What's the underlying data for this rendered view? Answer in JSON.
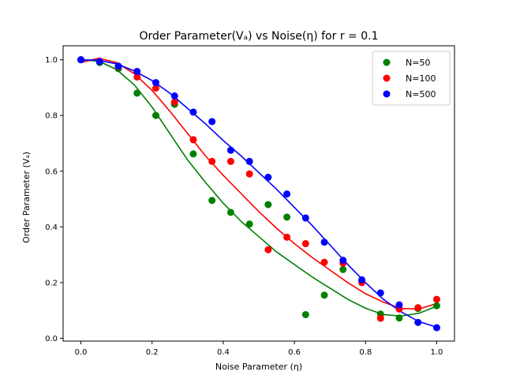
{
  "chart_data": {
    "type": "scatter",
    "title": "Order Parameter(Vₐ) vs Noise(η) for r = 0.1",
    "xlabel": "Noise Parameter (η)",
    "ylabel": "Order Parameter (Vₐ)",
    "xlim": [
      -0.05,
      1.05
    ],
    "ylim": [
      -0.01,
      1.05
    ],
    "xticks": [
      0.0,
      0.2,
      0.4,
      0.6,
      0.8,
      1.0
    ],
    "xtick_labels": [
      "0.0",
      "0.2",
      "0.4",
      "0.6",
      "0.8",
      "1.0"
    ],
    "yticks": [
      0.0,
      0.2,
      0.4,
      0.6,
      0.8,
      1.0
    ],
    "ytick_labels": [
      "0.0",
      "0.2",
      "0.4",
      "0.6",
      "0.8",
      "1.0"
    ],
    "grid": false,
    "legend_position": "top-right",
    "x": [
      0.0,
      0.0526,
      0.1053,
      0.1579,
      0.2105,
      0.2632,
      0.3158,
      0.3684,
      0.4211,
      0.4737,
      0.5263,
      0.5789,
      0.6316,
      0.6842,
      0.7368,
      0.7895,
      0.8421,
      0.8947,
      0.9474,
      1.0
    ],
    "series": [
      {
        "name": "N=50",
        "color": "#008000",
        "values": [
          1.0,
          0.99,
          0.968,
          0.88,
          0.8,
          0.84,
          0.662,
          0.495,
          0.452,
          0.41,
          0.48,
          0.435,
          0.085,
          0.155,
          0.247,
          0.205,
          0.087,
          0.073,
          0.107,
          0.117
        ],
        "fit_x": [
          0.0,
          0.05,
          0.1,
          0.15,
          0.2,
          0.25,
          0.3,
          0.35,
          0.4,
          0.45,
          0.5,
          0.55,
          0.6,
          0.65,
          0.7,
          0.75,
          0.8,
          0.85,
          0.9,
          0.95,
          1.0
        ],
        "fit_y": [
          1.0,
          0.995,
          0.965,
          0.91,
          0.83,
          0.735,
          0.64,
          0.56,
          0.485,
          0.42,
          0.365,
          0.31,
          0.265,
          0.22,
          0.18,
          0.14,
          0.108,
          0.085,
          0.08,
          0.09,
          0.115
        ]
      },
      {
        "name": "N=100",
        "color": "#ff0000",
        "values": [
          1.0,
          0.995,
          0.975,
          0.938,
          0.898,
          0.848,
          0.713,
          0.635,
          0.635,
          0.59,
          0.318,
          0.363,
          0.34,
          0.273,
          0.27,
          0.2,
          0.072,
          0.105,
          0.11,
          0.14
        ],
        "fit_x": [
          0.0,
          0.05,
          0.1,
          0.15,
          0.2,
          0.25,
          0.3,
          0.35,
          0.4,
          0.45,
          0.5,
          0.55,
          0.6,
          0.65,
          0.7,
          0.75,
          0.8,
          0.85,
          0.9,
          0.95,
          1.0
        ],
        "fit_y": [
          0.99,
          1.005,
          0.99,
          0.95,
          0.89,
          0.815,
          0.735,
          0.655,
          0.585,
          0.52,
          0.455,
          0.395,
          0.34,
          0.29,
          0.245,
          0.2,
          0.16,
          0.13,
          0.107,
          0.105,
          0.125
        ]
      },
      {
        "name": "N=500",
        "color": "#0000ff",
        "values": [
          1.0,
          0.993,
          0.977,
          0.958,
          0.918,
          0.87,
          0.812,
          0.778,
          0.675,
          0.635,
          0.578,
          0.518,
          0.432,
          0.345,
          0.28,
          0.21,
          0.163,
          0.12,
          0.057,
          0.038
        ],
        "fit_x": [
          0.0,
          0.05,
          0.1,
          0.15,
          0.2,
          0.25,
          0.3,
          0.35,
          0.4,
          0.45,
          0.5,
          0.55,
          0.6,
          0.65,
          0.7,
          0.75,
          0.8,
          0.85,
          0.9,
          0.95,
          1.0
        ],
        "fit_y": [
          1.0,
          0.998,
          0.985,
          0.96,
          0.925,
          0.88,
          0.825,
          0.77,
          0.71,
          0.655,
          0.595,
          0.535,
          0.47,
          0.405,
          0.335,
          0.265,
          0.2,
          0.14,
          0.095,
          0.06,
          0.04
        ]
      }
    ]
  }
}
